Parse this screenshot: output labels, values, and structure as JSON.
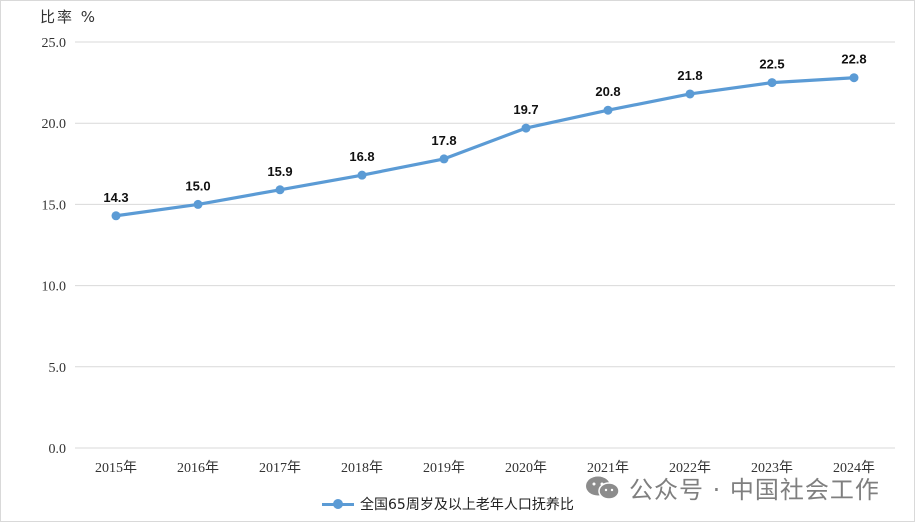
{
  "unit_label": "比率 %",
  "watermark": "公众号 · 中国社会工作",
  "colors": {
    "series": "#5b9bd5",
    "grid": "#d9d9d9"
  },
  "chart_data": {
    "type": "line",
    "title": "",
    "xlabel": "",
    "ylabel": "比率 %",
    "categories": [
      "2015年",
      "2016年",
      "2017年",
      "2018年",
      "2019年",
      "2020年",
      "2021年",
      "2022年",
      "2023年",
      "2024年"
    ],
    "series": [
      {
        "name": "全国65周岁及以上老年人口抚养比",
        "values": [
          14.3,
          15.0,
          15.9,
          16.8,
          17.8,
          19.7,
          20.8,
          21.8,
          22.5,
          22.8
        ]
      }
    ],
    "data_labels": [
      "14.3",
      "15.0",
      "15.9",
      "16.8",
      "17.8",
      "19.7",
      "20.8",
      "21.8",
      "22.5",
      "22.8"
    ],
    "yticks": [
      "0.0",
      "5.0",
      "10.0",
      "15.0",
      "20.0",
      "25.0"
    ],
    "ylim": [
      0,
      25
    ],
    "grid": true,
    "legend_position": "bottom"
  }
}
